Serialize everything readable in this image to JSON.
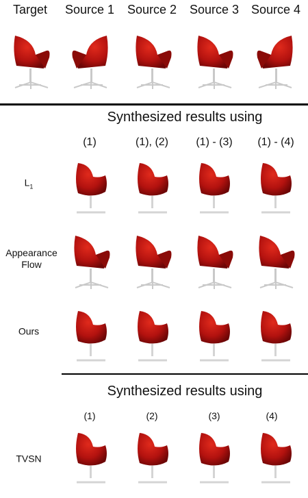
{
  "top_headers": [
    "Target",
    "Source 1",
    "Source 2",
    "Source 3",
    "Source 4"
  ],
  "section1": {
    "title": "Synthesized results using",
    "columns": [
      "(1)",
      "(1), (2)",
      "(1) - (3)",
      "(1) - (4)"
    ],
    "rows": [
      {
        "label": "L",
        "sub": "1"
      },
      {
        "label": "Appearance",
        "label2": "Flow"
      },
      {
        "label": "Ours"
      }
    ]
  },
  "section2": {
    "title": "Synthesized results using",
    "columns": [
      "(1)",
      "(2)",
      "(3)",
      "(4)"
    ],
    "rows": [
      {
        "label": "TVSN"
      }
    ]
  },
  "colors": {
    "chair_red": "#b3120f",
    "chair_dark": "#6d0606",
    "chair_light": "#e02a1c",
    "base_gray": "#c9c9c9"
  }
}
